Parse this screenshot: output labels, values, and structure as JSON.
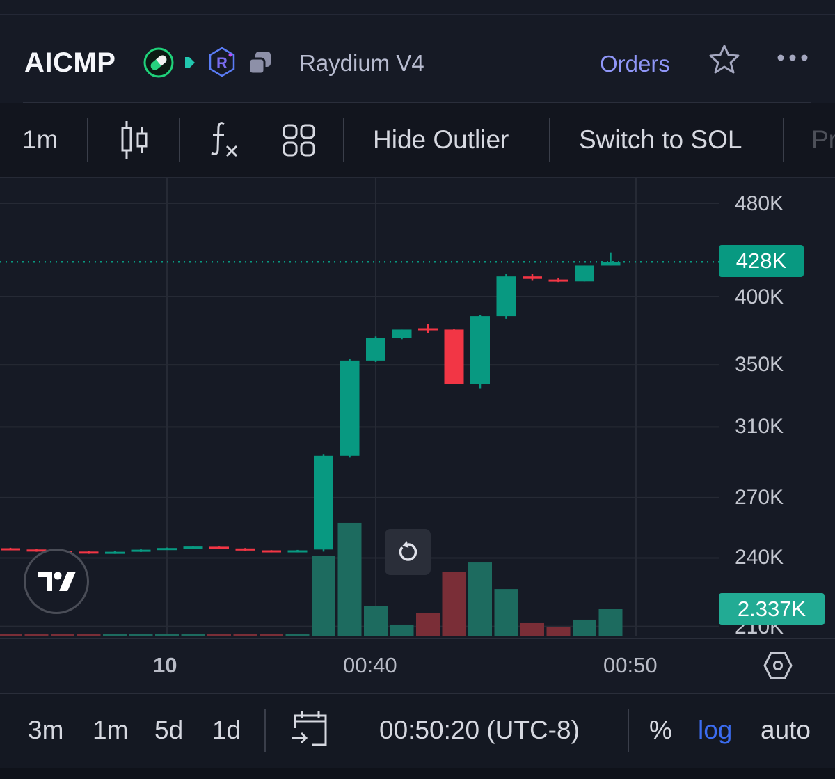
{
  "header": {
    "ticker": "AICMP",
    "dex": "Raydium V4",
    "orders_label": "Orders",
    "icons": [
      "pill-icon",
      "play-icon",
      "raydium-icon",
      "copy-icon",
      "star-icon",
      "more-icon"
    ]
  },
  "toolbar": {
    "interval": "1m",
    "hide_outlier": "Hide Outlier",
    "switch_sol": "Switch to SOL",
    "truncated_item": "Pr",
    "icons": [
      "candlestick-icon",
      "indicators-fx-icon",
      "layout-grid-icon"
    ]
  },
  "price_axis": {
    "ticks": [
      "480K",
      "400K",
      "350K",
      "310K",
      "270K",
      "240K",
      "210K"
    ],
    "current_price_label": "428K",
    "current_volume_label": "2.337K"
  },
  "time_axis": {
    "ticks": [
      "10",
      "00:40",
      "00:50"
    ]
  },
  "bottom_bar": {
    "ranges": [
      "3m",
      "1m",
      "5d",
      "1d"
    ],
    "clock": "00:50:20 (UTC-8)",
    "percent": "%",
    "log": "log",
    "auto": "auto",
    "log_active": true
  },
  "colors": {
    "up": "#089981",
    "down": "#f23645",
    "accent_log": "#3b6cf0",
    "orders": "#8f96f7"
  },
  "chart_data": {
    "type": "candlestick",
    "scale": "log",
    "unit": "K",
    "grid": true,
    "current_price": 428,
    "candles": [
      {
        "t": "00:26",
        "o": 244.6,
        "h": 244.8,
        "l": 243.8,
        "c": 243.9
      },
      {
        "t": "00:27",
        "o": 244.0,
        "h": 244.2,
        "l": 242.9,
        "c": 243.0
      },
      {
        "t": "00:28",
        "o": 243.3,
        "h": 243.5,
        "l": 242.4,
        "c": 242.6
      },
      {
        "t": "00:29",
        "o": 243.0,
        "h": 243.2,
        "l": 241.9,
        "c": 242.1
      },
      {
        "t": "00:30",
        "o": 242.1,
        "h": 243.1,
        "l": 241.9,
        "c": 242.9
      },
      {
        "t": "00:31",
        "o": 242.9,
        "h": 244.1,
        "l": 242.8,
        "c": 243.9
      },
      {
        "t": "00:32",
        "o": 243.9,
        "h": 244.9,
        "l": 243.8,
        "c": 244.7
      },
      {
        "t": "00:33",
        "o": 244.7,
        "h": 245.6,
        "l": 244.6,
        "c": 245.4
      },
      {
        "t": "00:34",
        "o": 245.3,
        "h": 245.4,
        "l": 244.1,
        "c": 244.3
      },
      {
        "t": "00:35",
        "o": 244.5,
        "h": 244.7,
        "l": 243.3,
        "c": 243.5
      },
      {
        "t": "00:36",
        "o": 243.6,
        "h": 243.7,
        "l": 242.6,
        "c": 242.8
      },
      {
        "t": "00:37",
        "o": 242.7,
        "h": 243.8,
        "l": 242.6,
        "c": 243.6
      },
      {
        "t": "00:38",
        "o": 244,
        "h": 294,
        "l": 243,
        "c": 293
      },
      {
        "t": "00:39",
        "o": 293,
        "h": 354,
        "l": 292,
        "c": 353
      },
      {
        "t": "00:40",
        "o": 353,
        "h": 370,
        "l": 352,
        "c": 369
      },
      {
        "t": "00:41",
        "o": 369,
        "h": 375,
        "l": 368,
        "c": 375
      },
      {
        "t": "00:42",
        "o": 376,
        "h": 379,
        "l": 372.5,
        "c": 375
      },
      {
        "t": "00:43",
        "o": 375,
        "h": 375.5,
        "l": 337,
        "c": 337
      },
      {
        "t": "00:44",
        "o": 337,
        "h": 386,
        "l": 334,
        "c": 385
      },
      {
        "t": "00:45",
        "o": 385,
        "h": 418,
        "l": 383,
        "c": 416
      },
      {
        "t": "00:46",
        "o": 416,
        "h": 418,
        "l": 413,
        "c": 414
      },
      {
        "t": "00:47",
        "o": 413.5,
        "h": 415,
        "l": 411.5,
        "c": 412
      },
      {
        "t": "00:48",
        "o": 412,
        "h": 425,
        "l": 412,
        "c": 425
      },
      {
        "t": "00:49",
        "o": 425,
        "h": 436,
        "l": 425,
        "c": 428
      }
    ],
    "volume": [
      0.18,
      0.18,
      0.18,
      0.18,
      0.18,
      0.18,
      0.18,
      0.18,
      0.18,
      0.18,
      0.18,
      0.18,
      6.95,
      9.77,
      2.58,
      0.96,
      1.98,
      5.57,
      6.35,
      4.07,
      1.14,
      0.84,
      1.44,
      2.337
    ]
  }
}
